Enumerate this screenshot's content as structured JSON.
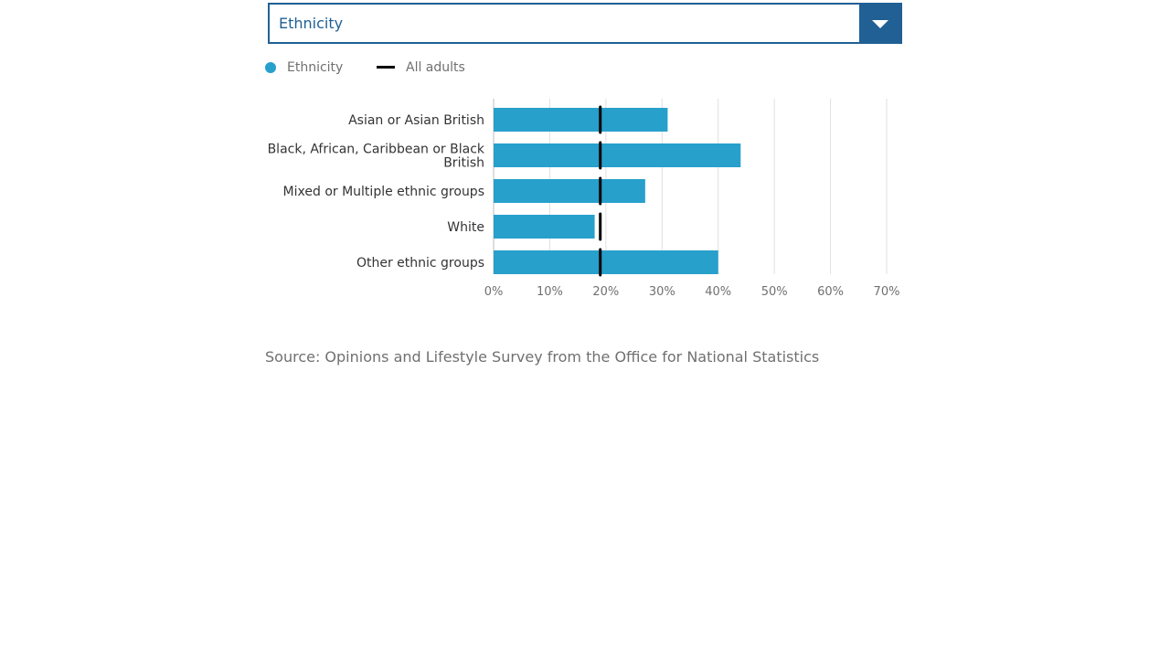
{
  "dropdown": {
    "selected": "Ethnicity"
  },
  "legend": [
    {
      "label": "Ethnicity",
      "kind": "dot",
      "color": "#27a0cc"
    },
    {
      "label": "All adults",
      "kind": "line",
      "color": "#000000"
    }
  ],
  "chart_data": {
    "type": "bar",
    "orientation": "horizontal",
    "categories": [
      [
        "Asian or Asian British"
      ],
      [
        "Black, African, Caribbean or Black",
        "British"
      ],
      [
        "Mixed or Multiple ethnic groups"
      ],
      [
        "White"
      ],
      [
        "Other ethnic groups"
      ]
    ],
    "series": [
      {
        "name": "Ethnicity",
        "values": [
          31,
          44,
          27,
          18,
          40
        ],
        "color": "#27a0cc"
      },
      {
        "name": "All adults",
        "values": [
          19,
          19,
          19,
          19,
          19
        ],
        "color": "#000000",
        "marker": "line"
      }
    ],
    "xlim": [
      0,
      70
    ],
    "xticks": [
      0,
      10,
      20,
      30,
      40,
      50,
      60,
      70
    ],
    "xtick_labels": [
      "0%",
      "10%",
      "20%",
      "30%",
      "40%",
      "50%",
      "60%",
      "70%"
    ],
    "grid": true,
    "legend_position": "top-left"
  },
  "source": "Source: Opinions and Lifestyle Survey from the Office for National Statistics"
}
